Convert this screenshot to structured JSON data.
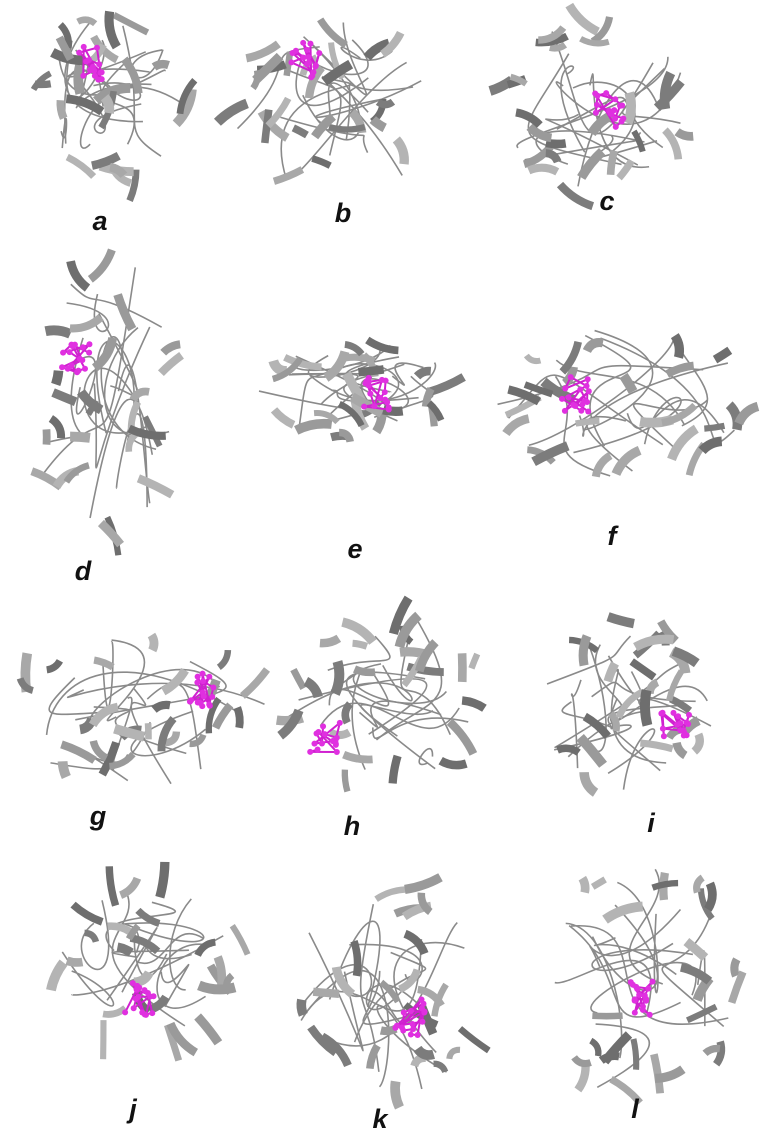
{
  "panels": [
    {
      "label": "a"
    },
    {
      "label": "b"
    },
    {
      "label": "c"
    },
    {
      "label": "d"
    },
    {
      "label": "e"
    },
    {
      "label": "f"
    },
    {
      "label": "g"
    },
    {
      "label": "h"
    },
    {
      "label": "i"
    },
    {
      "label": "j"
    },
    {
      "label": "k"
    },
    {
      "label": "l"
    }
  ]
}
